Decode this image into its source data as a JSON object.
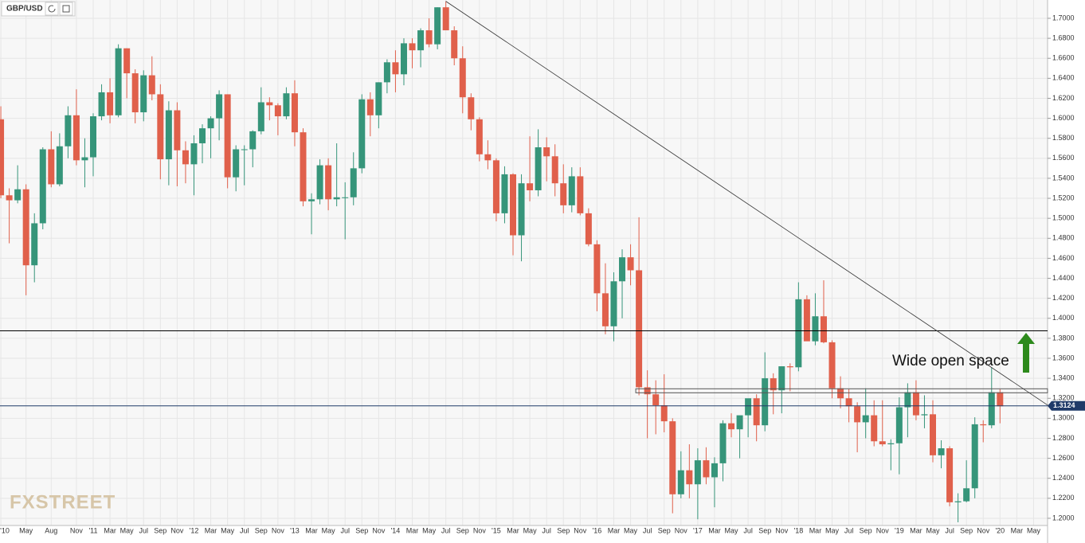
{
  "chart_data": {
    "type": "candlestick",
    "symbol": "GBP/USD",
    "watermark": "FXSTREET",
    "categories": [
      "'10",
      null,
      null,
      "May",
      null,
      null,
      "Aug",
      null,
      null,
      "Nov",
      null,
      "'11",
      null,
      "Mar",
      null,
      "May",
      null,
      "Jul",
      null,
      "Sep",
      null,
      "Nov",
      null,
      "'12",
      null,
      "Mar",
      null,
      "May",
      null,
      "Jul",
      null,
      "Sep",
      null,
      "Nov",
      null,
      "'13",
      null,
      "Mar",
      null,
      "May",
      null,
      "Jul",
      null,
      "Sep",
      null,
      "Nov",
      null,
      "'14",
      null,
      "Mar",
      null,
      "May",
      null,
      "Jul",
      null,
      "Sep",
      null,
      "Nov",
      null,
      "'15",
      null,
      "Mar",
      null,
      "May",
      null,
      "Jul",
      null,
      "Sep",
      null,
      "Nov",
      null,
      "'16",
      null,
      "Mar",
      null,
      "May",
      null,
      "Jul",
      null,
      "Sep",
      null,
      "Nov",
      null,
      "'17",
      null,
      "Mar",
      null,
      "May",
      null,
      "Jul",
      null,
      "Sep",
      null,
      "Nov",
      null,
      "'18",
      null,
      "Mar",
      null,
      "May",
      null,
      "Jul",
      null,
      "Sep",
      null,
      "Nov",
      null,
      "'19",
      null,
      "Mar",
      null,
      "May",
      null,
      "Jul",
      null,
      "Sep",
      null,
      "Nov",
      null,
      "'20",
      null,
      "Mar",
      null,
      "May"
    ],
    "open": [
      1.599,
      1.523,
      1.518,
      1.529,
      1.453,
      1.495,
      1.569,
      1.534,
      1.572,
      1.603,
      1.558,
      1.561,
      1.602,
      1.626,
      1.603,
      1.67,
      1.645,
      1.606,
      1.643,
      1.624,
      1.559,
      1.608,
      1.568,
      1.554,
      1.575,
      1.59,
      1.6,
      1.624,
      1.541,
      1.569,
      1.569,
      1.587,
      1.616,
      1.613,
      1.602,
      1.625,
      1.586,
      1.517,
      1.519,
      1.553,
      1.519,
      1.521,
      1.521,
      1.55,
      1.619,
      1.603,
      1.636,
      1.656,
      1.644,
      1.675,
      1.668,
      1.688,
      1.674,
      1.711,
      1.688,
      1.66,
      1.621,
      1.599,
      1.564,
      1.558,
      1.505,
      1.544,
      1.483,
      1.535,
      1.528,
      1.571,
      1.562,
      1.535,
      1.513,
      1.542,
      1.505,
      1.474,
      1.425,
      1.392,
      1.437,
      1.461,
      1.448,
      1.331,
      1.324,
      1.313,
      1.297,
      1.224,
      1.248,
      1.234,
      1.258,
      1.241,
      1.255,
      1.295,
      1.289,
      1.303,
      1.32,
      1.293,
      1.34,
      1.328,
      1.352,
      1.351,
      1.419,
      1.377,
      1.402,
      1.376,
      1.33,
      1.32,
      1.312,
      1.296,
      1.303,
      1.277,
      1.274,
      1.275,
      1.311,
      1.326,
      1.303,
      1.304,
      1.263,
      1.27,
      1.216,
      1.217,
      1.23,
      1.294,
      1.293,
      1.326,
      null,
      null,
      null,
      null
    ],
    "high": [
      1.612,
      1.53,
      1.553,
      1.534,
      1.505,
      1.571,
      1.587,
      1.585,
      1.612,
      1.629,
      1.58,
      1.605,
      1.634,
      1.64,
      1.674,
      1.67,
      1.649,
      1.648,
      1.662,
      1.634,
      1.617,
      1.616,
      1.577,
      1.583,
      1.594,
      1.602,
      1.628,
      1.624,
      1.573,
      1.573,
      1.588,
      1.631,
      1.621,
      1.615,
      1.631,
      1.638,
      1.59,
      1.525,
      1.559,
      1.56,
      1.575,
      1.536,
      1.566,
      1.624,
      1.626,
      1.636,
      1.659,
      1.668,
      1.68,
      1.68,
      1.69,
      1.7,
      1.711,
      1.717,
      1.692,
      1.672,
      1.625,
      1.601,
      1.578,
      1.56,
      1.552,
      1.545,
      1.544,
      1.582,
      1.589,
      1.581,
      1.574,
      1.554,
      1.551,
      1.551,
      1.51,
      1.478,
      1.455,
      1.446,
      1.469,
      1.474,
      1.501,
      1.348,
      1.338,
      1.344,
      1.3,
      1.267,
      1.274,
      1.27,
      1.271,
      1.261,
      1.298,
      1.305,
      1.301,
      1.319,
      1.324,
      1.366,
      1.345,
      1.352,
      1.355,
      1.436,
      1.423,
      1.425,
      1.438,
      1.378,
      1.342,
      1.329,
      1.316,
      1.33,
      1.318,
      1.318,
      1.279,
      1.321,
      1.335,
      1.338,
      1.323,
      1.318,
      1.278,
      1.272,
      1.225,
      1.258,
      1.301,
      1.298,
      1.351,
      1.329,
      null,
      null,
      null,
      null
    ],
    "low": [
      1.52,
      1.475,
      1.515,
      1.423,
      1.436,
      1.489,
      1.531,
      1.532,
      1.56,
      1.553,
      1.531,
      1.542,
      1.598,
      1.595,
      1.601,
      1.62,
      1.595,
      1.597,
      1.618,
      1.539,
      1.533,
      1.532,
      1.535,
      1.523,
      1.555,
      1.56,
      1.578,
      1.53,
      1.527,
      1.533,
      1.551,
      1.584,
      1.598,
      1.583,
      1.599,
      1.572,
      1.512,
      1.484,
      1.514,
      1.508,
      1.512,
      1.479,
      1.513,
      1.545,
      1.582,
      1.59,
      1.625,
      1.626,
      1.633,
      1.65,
      1.651,
      1.671,
      1.669,
      1.689,
      1.653,
      1.605,
      1.588,
      1.557,
      1.549,
      1.497,
      1.495,
      1.463,
      1.457,
      1.517,
      1.522,
      1.537,
      1.522,
      1.505,
      1.506,
      1.503,
      1.472,
      1.407,
      1.384,
      1.377,
      1.4,
      1.433,
      1.323,
      1.28,
      1.284,
      1.286,
      1.205,
      1.22,
      1.22,
      1.199,
      1.234,
      1.211,
      1.237,
      1.281,
      1.26,
      1.281,
      1.277,
      1.287,
      1.304,
      1.305,
      1.327,
      1.347,
      1.378,
      1.373,
      1.375,
      1.32,
      1.31,
      1.296,
      1.266,
      1.28,
      1.272,
      1.272,
      1.248,
      1.244,
      1.281,
      1.298,
      1.29,
      1.256,
      1.25,
      1.212,
      1.196,
      1.216,
      1.22,
      1.276,
      1.29,
      1.295,
      null,
      null,
      null,
      null
    ],
    "close": [
      1.523,
      1.518,
      1.529,
      1.453,
      1.495,
      1.569,
      1.534,
      1.572,
      1.603,
      1.558,
      1.561,
      1.602,
      1.626,
      1.603,
      1.67,
      1.645,
      1.606,
      1.643,
      1.624,
      1.559,
      1.608,
      1.568,
      1.554,
      1.575,
      1.59,
      1.6,
      1.624,
      1.541,
      1.569,
      1.569,
      1.587,
      1.616,
      1.613,
      1.602,
      1.625,
      1.586,
      1.517,
      1.519,
      1.553,
      1.519,
      1.521,
      1.521,
      1.55,
      1.619,
      1.603,
      1.636,
      1.656,
      1.644,
      1.675,
      1.668,
      1.688,
      1.674,
      1.711,
      1.688,
      1.66,
      1.621,
      1.599,
      1.564,
      1.558,
      1.505,
      1.544,
      1.483,
      1.535,
      1.528,
      1.571,
      1.562,
      1.535,
      1.513,
      1.542,
      1.505,
      1.474,
      1.425,
      1.392,
      1.437,
      1.461,
      1.448,
      1.331,
      1.324,
      1.313,
      1.297,
      1.224,
      1.248,
      1.234,
      1.258,
      1.241,
      1.255,
      1.295,
      1.289,
      1.303,
      1.32,
      1.293,
      1.34,
      1.328,
      1.352,
      1.351,
      1.419,
      1.377,
      1.402,
      1.376,
      1.33,
      1.32,
      1.312,
      1.296,
      1.303,
      1.277,
      1.274,
      1.275,
      1.311,
      1.326,
      1.303,
      1.304,
      1.263,
      1.27,
      1.216,
      1.217,
      1.23,
      1.294,
      1.293,
      1.326,
      1.312,
      null,
      null,
      null,
      null
    ],
    "up_color": "#36957a",
    "down_color": "#e0604b",
    "ylim": [
      1.1928,
      1.7183
    ],
    "yticks": [
      {
        "value": 1.2,
        "label": "1.2000"
      },
      {
        "value": 1.22,
        "label": "1.2200"
      },
      {
        "value": 1.24,
        "label": "1.2400"
      },
      {
        "value": 1.26,
        "label": "1.2600"
      },
      {
        "value": 1.28,
        "label": "1.2800"
      },
      {
        "value": 1.3,
        "label": "1.3000"
      },
      {
        "value": 1.32,
        "label": "1.3200"
      },
      {
        "value": 1.34,
        "label": "1.3400"
      },
      {
        "value": 1.36,
        "label": "1.3600"
      },
      {
        "value": 1.38,
        "label": "1.3800"
      },
      {
        "value": 1.4,
        "label": "1.4000"
      },
      {
        "value": 1.42,
        "label": "1.4200"
      },
      {
        "value": 1.44,
        "label": "1.4400"
      },
      {
        "value": 1.46,
        "label": "1.4600"
      },
      {
        "value": 1.48,
        "label": "1.4800"
      },
      {
        "value": 1.5,
        "label": "1.5000"
      },
      {
        "value": 1.52,
        "label": "1.5200"
      },
      {
        "value": 1.54,
        "label": "1.5400"
      },
      {
        "value": 1.56,
        "label": "1.5600"
      },
      {
        "value": 1.58,
        "label": "1.5800"
      },
      {
        "value": 1.6,
        "label": "1.6000"
      },
      {
        "value": 1.62,
        "label": "1.6200"
      },
      {
        "value": 1.64,
        "label": "1.6400"
      },
      {
        "value": 1.66,
        "label": "1.6600"
      },
      {
        "value": 1.68,
        "label": "1.6800"
      },
      {
        "value": 1.7,
        "label": "1.7000"
      }
    ],
    "grid": true,
    "hline": {
      "value": 1.3875,
      "color": "#000000"
    },
    "price_line": {
      "value": 1.3124,
      "label": "1.3124",
      "color": "#1f3a68"
    },
    "zone": {
      "start": 76,
      "values": [
        1.3255,
        1.3295
      ],
      "color": "#555555"
    },
    "trendline": {
      "x": [
        53,
        124.7
      ],
      "y": [
        1.717,
        1.313
      ],
      "color": "#333333"
    },
    "annotation": "Wide open space"
  }
}
